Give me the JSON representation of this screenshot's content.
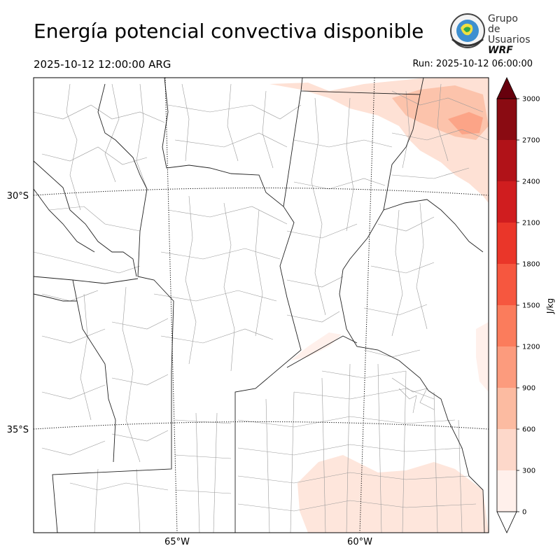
{
  "header": {
    "title": "Energía potencial convectiva disponible",
    "valid_time": "2025-10-12 12:00:00 ARG",
    "run": "Run: 2025-10-12 06:00:00"
  },
  "logo": {
    "line1": "Grupo de",
    "line2": "Usuarios",
    "line3": "WRF"
  },
  "map": {
    "lat_labels": [
      "30°S",
      "35°S"
    ],
    "lon_labels": [
      "65°W",
      "60°W"
    ]
  },
  "colorbar": {
    "unit": "J/kg",
    "ticks": [
      "0",
      "300",
      "600",
      "900",
      "1200",
      "1500",
      "1800",
      "2100",
      "2400",
      "2700",
      "3000"
    ],
    "colors": [
      "#fff0eb",
      "#fdd8ca",
      "#fcbba1",
      "#fc9b7d",
      "#fb7c5c",
      "#f6573f",
      "#ea3629",
      "#d01d1f",
      "#b11218",
      "#8a0b12",
      "#67000d"
    ]
  }
}
